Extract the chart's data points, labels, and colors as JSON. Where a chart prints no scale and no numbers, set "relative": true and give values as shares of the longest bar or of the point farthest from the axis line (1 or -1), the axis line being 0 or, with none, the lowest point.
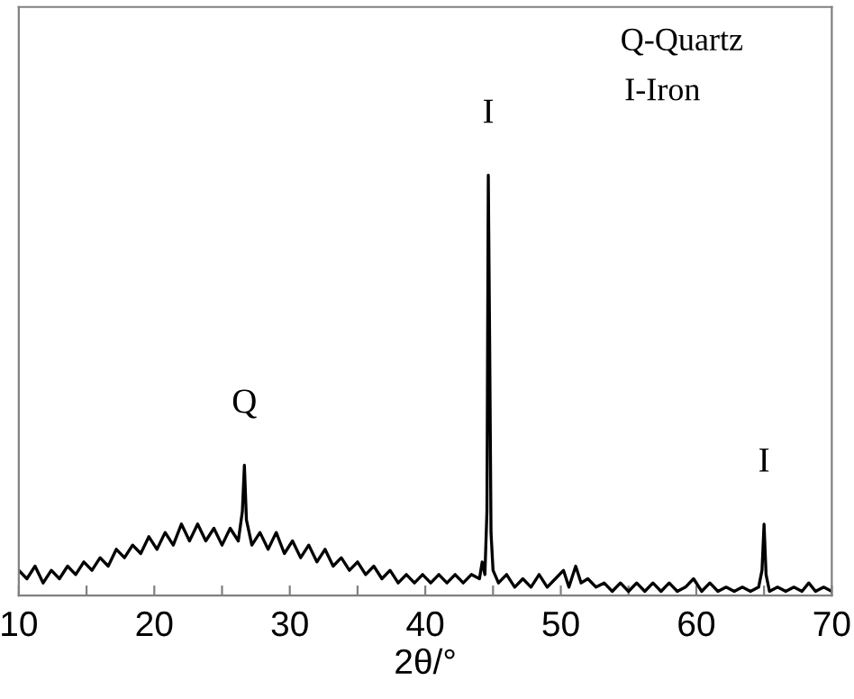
{
  "chart_data": {
    "type": "line",
    "relative": true,
    "xlabel": "2θ/°",
    "x": [
      10,
      10.6,
      11.2,
      11.8,
      12.4,
      13,
      13.6,
      14.2,
      14.8,
      15.4,
      16,
      16.6,
      17.2,
      17.8,
      18.4,
      19,
      19.6,
      20.2,
      20.8,
      21.4,
      22,
      22.6,
      23.2,
      23.8,
      24.4,
      25,
      25.6,
      26.2,
      26.5,
      26.65,
      26.8,
      27.2,
      27.8,
      28.4,
      29,
      29.6,
      30.2,
      30.8,
      31.4,
      32,
      32.6,
      33.2,
      33.8,
      34.4,
      35,
      35.6,
      36.2,
      36.8,
      37.4,
      38,
      38.6,
      39.2,
      39.8,
      40.4,
      41,
      41.6,
      42.2,
      42.8,
      43.4,
      44,
      44.2,
      44.4,
      44.55,
      44.65,
      44.75,
      44.85,
      45,
      45.4,
      46,
      46.6,
      47.2,
      47.8,
      48.4,
      49,
      49.6,
      50.2,
      50.6,
      51.1,
      51.5,
      52,
      52.6,
      53.2,
      53.8,
      54.4,
      55,
      55.6,
      56.2,
      56.8,
      57.4,
      58,
      58.6,
      59.2,
      59.8,
      60.4,
      61,
      61.6,
      62.2,
      62.8,
      63.4,
      64,
      64.6,
      64.85,
      65,
      65.15,
      65.4,
      66,
      66.6,
      67.2,
      67.8,
      68.3,
      68.8,
      69.4,
      70
    ],
    "series": [
      {
        "color": "#000000",
        "values": [
          0.06,
          0.04,
          0.07,
          0.03,
          0.06,
          0.04,
          0.07,
          0.05,
          0.08,
          0.06,
          0.09,
          0.07,
          0.11,
          0.09,
          0.12,
          0.1,
          0.14,
          0.11,
          0.15,
          0.12,
          0.17,
          0.13,
          0.17,
          0.13,
          0.16,
          0.12,
          0.16,
          0.13,
          0.2,
          0.31,
          0.18,
          0.12,
          0.15,
          0.11,
          0.15,
          0.1,
          0.13,
          0.09,
          0.12,
          0.08,
          0.11,
          0.07,
          0.09,
          0.06,
          0.08,
          0.05,
          0.07,
          0.04,
          0.06,
          0.03,
          0.05,
          0.03,
          0.05,
          0.03,
          0.05,
          0.03,
          0.05,
          0.03,
          0.05,
          0.04,
          0.08,
          0.05,
          0.2,
          1.0,
          0.6,
          0.15,
          0.06,
          0.03,
          0.05,
          0.02,
          0.04,
          0.02,
          0.05,
          0.02,
          0.04,
          0.06,
          0.02,
          0.07,
          0.03,
          0.04,
          0.02,
          0.03,
          0.01,
          0.03,
          0.01,
          0.03,
          0.01,
          0.03,
          0.01,
          0.03,
          0.01,
          0.02,
          0.04,
          0.01,
          0.03,
          0.01,
          0.02,
          0.01,
          0.02,
          0.01,
          0.02,
          0.06,
          0.17,
          0.05,
          0.01,
          0.02,
          0.01,
          0.02,
          0.01,
          0.03,
          0.01,
          0.02,
          0.01
        ]
      }
    ],
    "xlim": [
      10,
      70
    ],
    "xticks": [
      10,
      {
        "value": 15,
        "label": null
      },
      20,
      {
        "value": 25,
        "label": null
      },
      30,
      {
        "value": 35,
        "label": null
      },
      40,
      {
        "value": 45,
        "label": null
      },
      50,
      {
        "value": 55,
        "label": null
      },
      60,
      {
        "value": 65,
        "label": null
      },
      70
    ],
    "annotations": [
      {
        "text": "Q",
        "x": 26.65,
        "y": 0.31
      },
      {
        "text": "I",
        "x": 44.65,
        "y": 1.0
      },
      {
        "text": "I",
        "x": 65,
        "y": 0.17
      },
      "Q-Quartz",
      "I-Iron"
    ]
  }
}
